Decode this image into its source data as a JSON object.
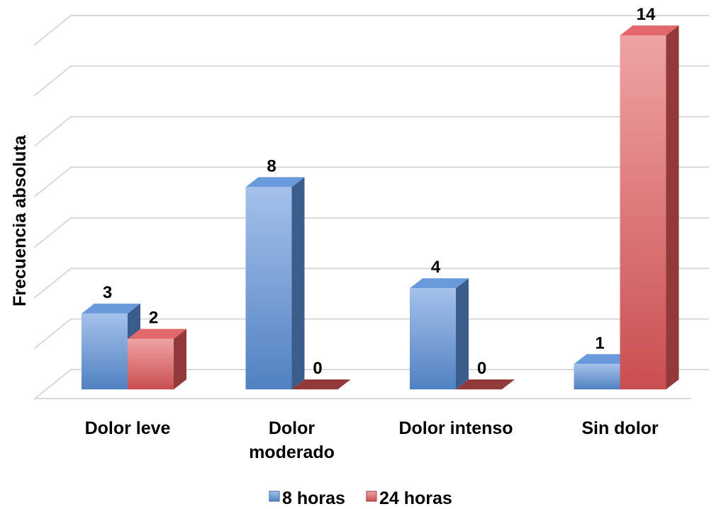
{
  "chart_data": {
    "type": "bar3d",
    "y_label": "Frecuencia absoluta",
    "categories": [
      "Dolor leve",
      "Dolor moderado",
      "Dolor intenso",
      "Sin dolor"
    ],
    "series": [
      {
        "name": "8 horas",
        "color": "#5a8fd8",
        "values": [
          3,
          8,
          4,
          1
        ]
      },
      {
        "name": "24 horas",
        "color": "#e0575a",
        "values": [
          2,
          0,
          0,
          14
        ]
      }
    ],
    "ylim": [
      0,
      14
    ],
    "yticks": [
      0,
      2,
      4,
      6,
      8,
      10,
      12,
      14
    ],
    "grid": true,
    "legend": "bottom"
  }
}
